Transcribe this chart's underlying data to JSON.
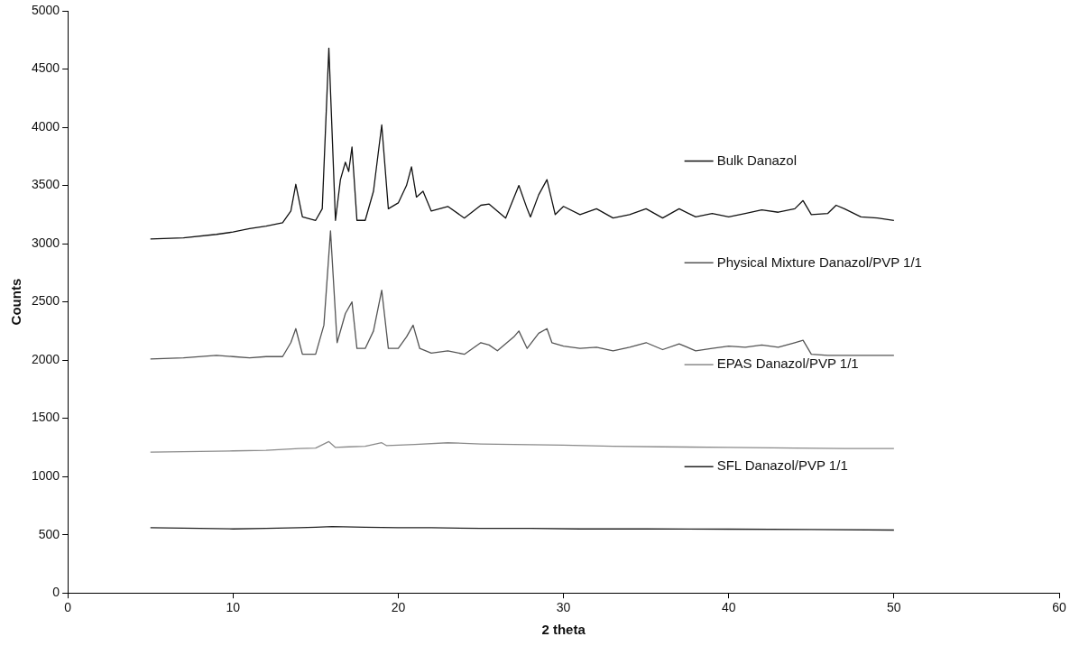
{
  "chart_data": {
    "type": "line",
    "xlabel": "2 theta",
    "ylabel": "Counts",
    "xlim": [
      0,
      60
    ],
    "xticks": [
      0,
      10,
      20,
      30,
      40,
      50,
      60
    ],
    "ylim": [
      0,
      5000
    ],
    "yticks": [
      0,
      500,
      1000,
      1500,
      2000,
      2500,
      3000,
      3500,
      4000,
      4500,
      5000
    ],
    "grid": false,
    "legend": "right",
    "marker": "none",
    "line_style": "solid",
    "series": [
      {
        "name": "Bulk Danazol",
        "color": "#111111",
        "x": [
          5,
          7,
          9,
          10,
          11,
          12,
          13,
          13.5,
          13.8,
          14.2,
          15,
          15.4,
          15.8,
          16.2,
          16.5,
          16.8,
          17,
          17.2,
          17.5,
          18,
          18.5,
          19,
          19.4,
          20,
          20.5,
          20.8,
          21.1,
          21.5,
          22,
          23,
          24,
          25,
          25.5,
          26,
          26.5,
          27.3,
          27.8,
          28,
          28.5,
          29,
          29.5,
          30,
          31,
          32,
          33,
          34,
          35,
          36,
          37,
          38,
          39,
          40,
          41,
          42,
          43,
          44,
          44.5,
          45,
          46,
          46.5,
          47,
          48,
          49,
          50
        ],
        "values": [
          3040,
          3050,
          3080,
          3100,
          3130,
          3150,
          3180,
          3280,
          3510,
          3230,
          3200,
          3300,
          4680,
          3200,
          3550,
          3700,
          3620,
          3830,
          3200,
          3200,
          3450,
          4020,
          3300,
          3350,
          3500,
          3660,
          3400,
          3450,
          3280,
          3320,
          3220,
          3330,
          3340,
          3280,
          3220,
          3500,
          3300,
          3230,
          3420,
          3550,
          3250,
          3320,
          3250,
          3300,
          3220,
          3250,
          3300,
          3220,
          3300,
          3230,
          3260,
          3230,
          3260,
          3290,
          3270,
          3300,
          3370,
          3250,
          3260,
          3330,
          3300,
          3230,
          3220,
          3200
        ]
      },
      {
        "name": "Physical Mixture Danazol/PVP 1/1",
        "color": "#555555",
        "x": [
          5,
          7,
          9,
          10,
          11,
          12,
          13,
          13.5,
          13.8,
          14.2,
          15,
          15.5,
          15.9,
          16.3,
          16.8,
          17.2,
          17.5,
          18,
          18.5,
          19,
          19.4,
          20,
          20.5,
          20.9,
          21.3,
          22,
          23,
          24,
          25,
          25.5,
          26,
          27,
          27.3,
          27.8,
          28.5,
          29,
          29.3,
          30,
          31,
          32,
          33,
          34,
          35,
          36,
          37,
          38,
          39,
          40,
          41,
          42,
          43,
          44,
          44.5,
          45,
          46,
          48,
          50
        ],
        "values": [
          2010,
          2020,
          2040,
          2030,
          2020,
          2030,
          2030,
          2150,
          2270,
          2050,
          2050,
          2300,
          3110,
          2150,
          2400,
          2500,
          2100,
          2100,
          2250,
          2600,
          2100,
          2100,
          2200,
          2300,
          2100,
          2060,
          2080,
          2050,
          2150,
          2130,
          2080,
          2200,
          2250,
          2100,
          2230,
          2270,
          2150,
          2120,
          2100,
          2110,
          2080,
          2110,
          2150,
          2090,
          2140,
          2080,
          2100,
          2120,
          2110,
          2130,
          2110,
          2150,
          2170,
          2050,
          2040,
          2040,
          2040
        ]
      },
      {
        "name": "EPAS Danazol/PVP 1/1",
        "color": "#8a8a8a",
        "x": [
          5,
          8,
          10,
          12,
          14,
          15,
          15.8,
          16.2,
          17,
          18,
          19,
          19.3,
          20,
          21,
          23,
          25,
          27,
          30,
          33,
          36,
          40,
          44,
          47,
          50
        ],
        "values": [
          1210,
          1215,
          1220,
          1225,
          1240,
          1245,
          1300,
          1250,
          1255,
          1260,
          1290,
          1265,
          1270,
          1275,
          1290,
          1280,
          1275,
          1270,
          1260,
          1255,
          1250,
          1245,
          1240,
          1240
        ]
      },
      {
        "name": "SFL Danazol/PVP 1/1",
        "color": "#222222",
        "x": [
          5,
          8,
          10,
          12,
          14,
          15,
          16,
          18,
          20,
          22,
          25,
          28,
          31,
          35,
          40,
          45,
          50
        ],
        "values": [
          560,
          555,
          550,
          555,
          560,
          565,
          570,
          565,
          560,
          560,
          555,
          555,
          550,
          550,
          548,
          545,
          540
        ]
      }
    ]
  }
}
